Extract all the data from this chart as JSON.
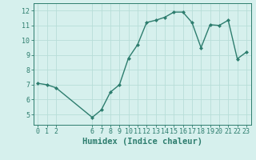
{
  "xlabel": "Humidex (Indice chaleur)",
  "ylabel": "",
  "x_values": [
    0,
    1,
    2,
    6,
    7,
    8,
    9,
    10,
    11,
    12,
    13,
    14,
    15,
    16,
    17,
    18,
    19,
    20,
    21,
    22,
    23
  ],
  "y_values": [
    7.1,
    7.0,
    6.8,
    4.8,
    5.3,
    6.5,
    7.0,
    8.8,
    9.7,
    11.2,
    11.35,
    11.55,
    11.9,
    11.9,
    11.2,
    9.5,
    11.05,
    11.0,
    11.35,
    8.75,
    9.2
  ],
  "line_color": "#2d7d6e",
  "marker": "D",
  "marker_size": 2.0,
  "bg_color": "#d6f0ed",
  "grid_color": "#b8ddd8",
  "tick_label_color": "#2d7d6e",
  "xlabel_color": "#2d7d6e",
  "xlim": [
    -0.5,
    23.5
  ],
  "ylim": [
    4.3,
    12.5
  ],
  "yticks": [
    5,
    6,
    7,
    8,
    9,
    10,
    11,
    12
  ],
  "xticks": [
    0,
    1,
    2,
    6,
    7,
    8,
    9,
    10,
    11,
    12,
    13,
    14,
    15,
    16,
    17,
    18,
    19,
    20,
    21,
    22,
    23
  ],
  "linewidth": 1.0,
  "fontsize_ticks": 6.0,
  "fontsize_xlabel": 7.5
}
